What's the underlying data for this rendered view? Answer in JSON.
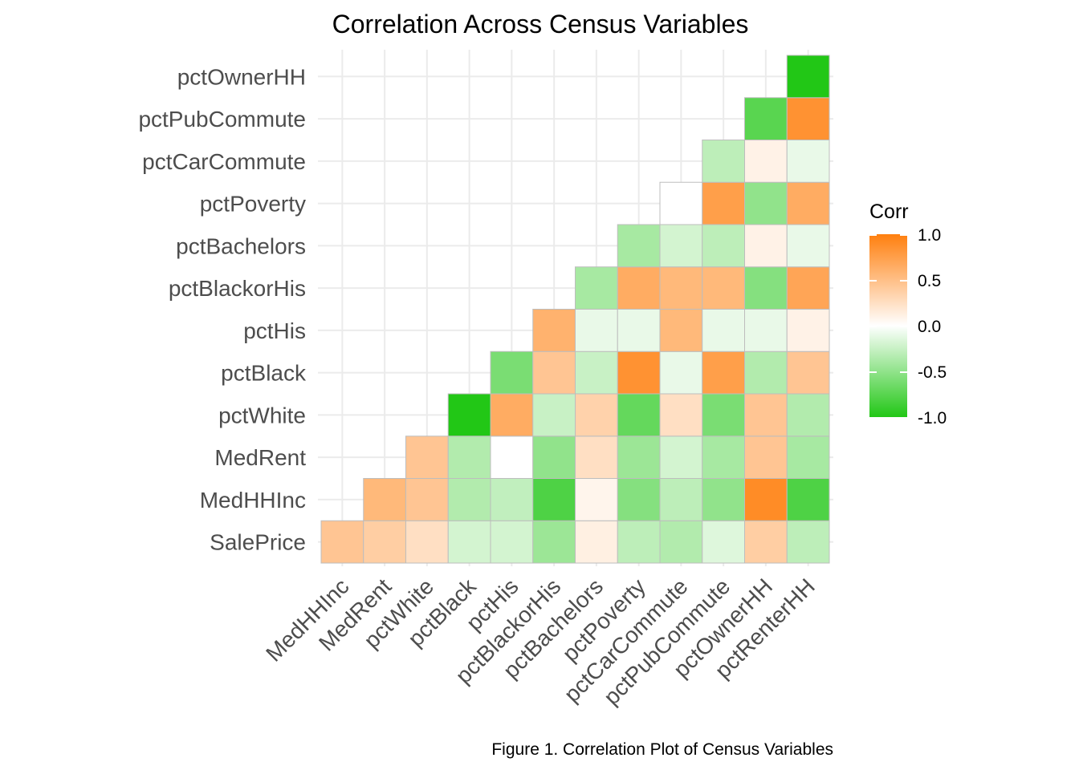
{
  "chart_data": {
    "type": "heatmap",
    "title": "Correlation Across Census Variables",
    "caption": "Figure 1. Correlation Plot of Census Variables",
    "x_categories": [
      "MedHHInc",
      "MedRent",
      "pctWhite",
      "pctBlack",
      "pctHis",
      "pctBlackorHis",
      "pctBachelors",
      "pctPoverty",
      "pctCarCommute",
      "pctPubCommute",
      "pctOwnerHH",
      "pctRenterHH"
    ],
    "y_categories": [
      "SalePrice",
      "MedHHInc",
      "MedRent",
      "pctWhite",
      "pctBlack",
      "pctHis",
      "pctBlackorHis",
      "pctBachelors",
      "pctPoverty",
      "pctCarCommute",
      "pctPubCommute",
      "pctOwnerHH"
    ],
    "values": [
      [
        0.45,
        0.38,
        0.25,
        -0.2,
        -0.2,
        -0.45,
        0.12,
        -0.3,
        -0.35,
        -0.15,
        0.38,
        -0.3
      ],
      [
        null,
        0.55,
        0.45,
        -0.35,
        -0.28,
        -0.8,
        0.08,
        -0.55,
        -0.3,
        -0.5,
        0.9,
        -0.8
      ],
      [
        null,
        null,
        0.45,
        -0.35,
        0.0,
        -0.5,
        0.25,
        -0.45,
        -0.2,
        -0.4,
        0.45,
        -0.4
      ],
      [
        null,
        null,
        null,
        -1.0,
        0.65,
        -0.25,
        0.35,
        -0.7,
        0.25,
        -0.6,
        0.45,
        -0.35
      ],
      [
        null,
        null,
        null,
        null,
        -0.6,
        0.45,
        -0.25,
        0.85,
        -0.1,
        0.75,
        -0.35,
        0.45
      ],
      [
        null,
        null,
        null,
        null,
        null,
        0.6,
        -0.1,
        -0.1,
        0.55,
        -0.1,
        -0.1,
        0.1
      ],
      [
        null,
        null,
        null,
        null,
        null,
        null,
        -0.4,
        0.65,
        0.55,
        0.55,
        -0.55,
        0.7
      ],
      [
        null,
        null,
        null,
        null,
        null,
        null,
        null,
        -0.4,
        -0.2,
        -0.3,
        0.1,
        -0.1
      ],
      [
        null,
        null,
        null,
        null,
        null,
        null,
        null,
        null,
        0.0,
        0.75,
        -0.5,
        0.65
      ],
      [
        null,
        null,
        null,
        null,
        null,
        null,
        null,
        null,
        null,
        -0.3,
        0.1,
        -0.1
      ],
      [
        null,
        null,
        null,
        null,
        null,
        null,
        null,
        null,
        null,
        null,
        -0.75,
        0.85
      ],
      [
        null,
        null,
        null,
        null,
        null,
        null,
        null,
        null,
        null,
        null,
        null,
        -1.0
      ]
    ],
    "scale": {
      "low_color": "#22c716",
      "mid_color": "#ffffff",
      "high_color": "#ff7f0e",
      "limits": [
        -1.0,
        1.0
      ]
    },
    "legend": {
      "title": "Corr",
      "ticks": [
        "1.0",
        "0.5",
        "0.0",
        "-0.5",
        "-1.0"
      ],
      "tick_values": [
        1.0,
        0.5,
        0.0,
        -0.5,
        -1.0
      ],
      "placement": "right"
    },
    "grid": true
  }
}
